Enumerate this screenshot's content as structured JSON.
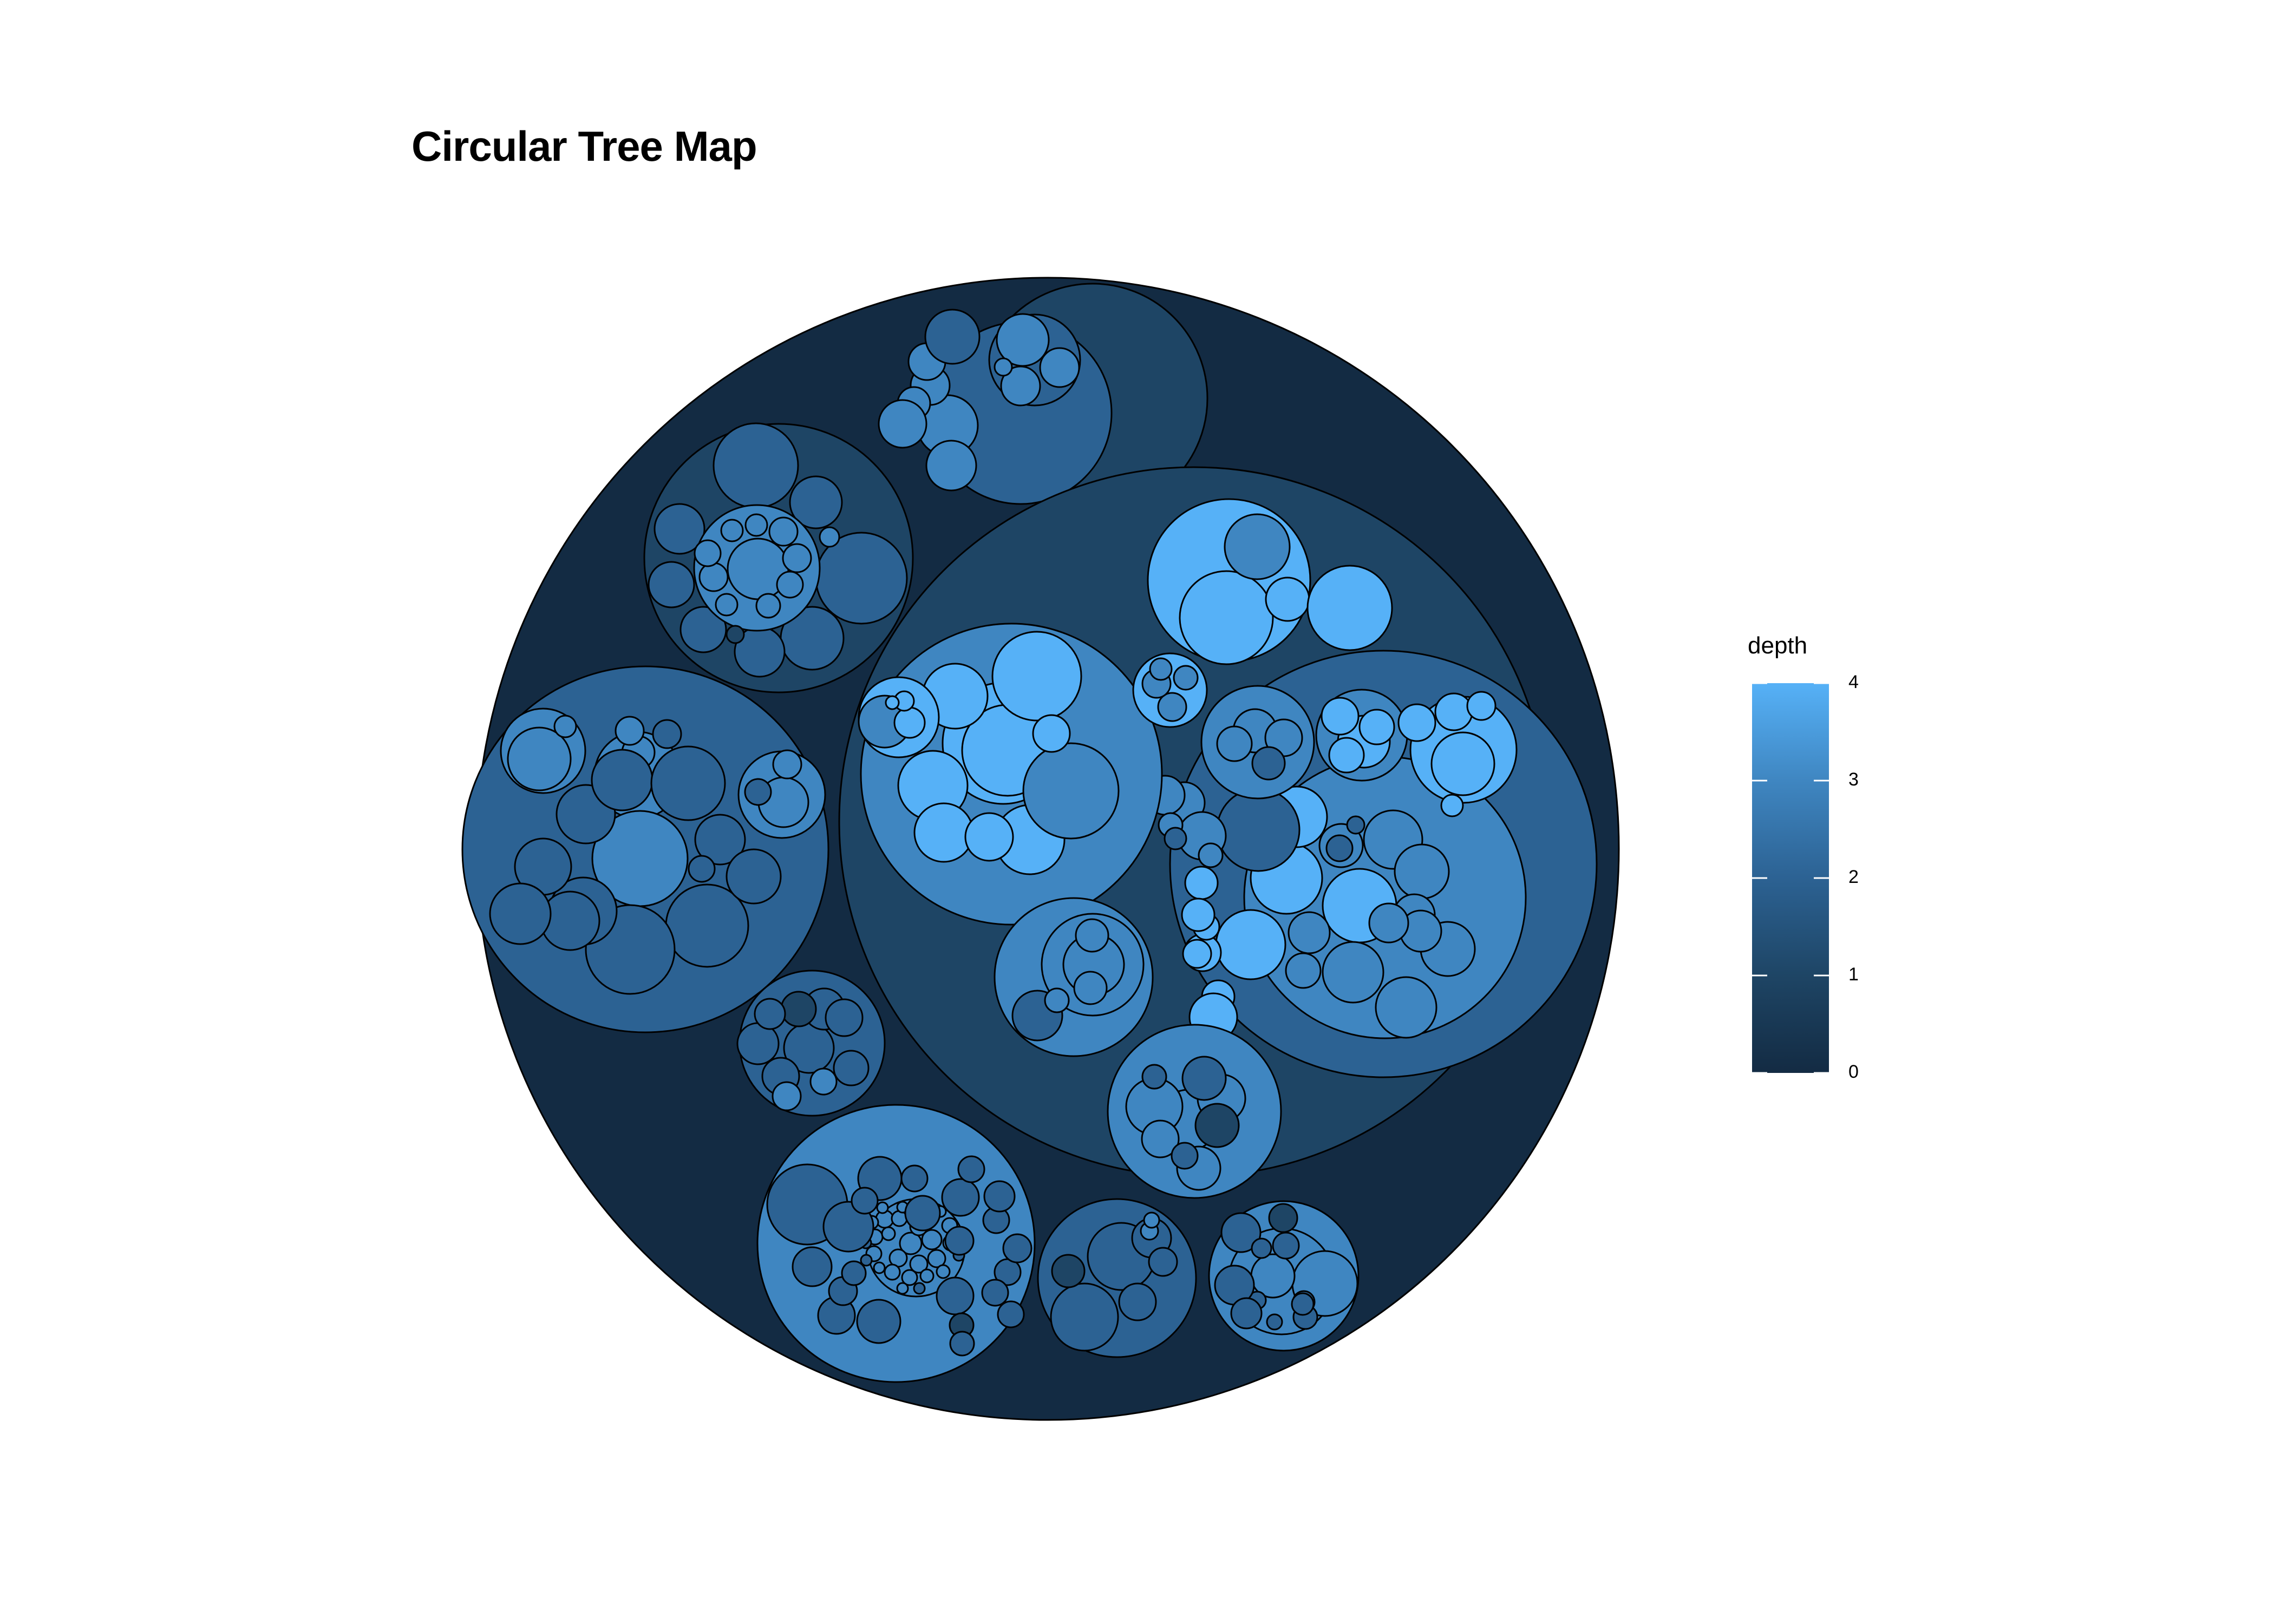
{
  "chart_data": {
    "type": "circle-packing",
    "title": "Circular Tree Map",
    "legend": {
      "title": "depth",
      "placement": "right",
      "ticks": [
        "0",
        "1",
        "2",
        "3",
        "4"
      ],
      "range": [
        0,
        4
      ]
    },
    "colors": {
      "depth_0": "#132B43",
      "depth_1": "#1E4565",
      "depth_2": "#2C6293",
      "depth_3": "#3F86C1",
      "depth_4": "#56B1F7"
    },
    "hierarchy": {
      "depth": 0,
      "children": [
        {
          "depth": 1,
          "children": [
            {
              "depth": 2,
              "children": [
                {
                  "depth": 3
                },
                {
                  "depth": 3
                },
                {
                  "depth": 3
                },
                {
                  "depth": 3
                },
                {
                  "depth": 3
                },
                {
                  "depth": 3
                }
              ]
            },
            {
              "depth": 2,
              "children": [
                {
                  "depth": 3
                },
                {
                  "depth": 3
                },
                {
                  "depth": 3
                },
                {
                  "depth": 3
                }
              ]
            },
            {
              "depth": 2
            }
          ]
        },
        {
          "depth": 1,
          "children": [
            {
              "depth": 2
            },
            {
              "depth": 2
            },
            {
              "depth": 2
            },
            {
              "depth": 2
            },
            {
              "depth": 2
            },
            {
              "depth": 2
            },
            {
              "depth": 2
            },
            {
              "depth": 2,
              "children": [
                {
                  "depth": 3
                },
                {
                  "depth": 3
                },
                {
                  "depth": 3
                },
                {
                  "depth": 3
                },
                {
                  "depth": 3
                },
                {
                  "depth": 3
                },
                {
                  "depth": 3
                },
                {
                  "depth": 3
                },
                {
                  "depth": 3
                },
                {
                  "depth": 3
                },
                {
                  "depth": 3
                },
                {
                  "depth": 3
                }
              ]
            }
          ]
        },
        {
          "depth": 1,
          "children": [
            {
              "depth": 2,
              "children": [
                {
                  "depth": 3
                },
                {
                  "depth": 3
                },
                {
                  "depth": 3
                }
              ]
            },
            {
              "depth": 2,
              "children": [
                {
                  "depth": 3
                },
                {
                  "depth": 3
                },
                {
                  "depth": 3
                }
              ]
            },
            {
              "depth": 2,
              "children": [
                {
                  "depth": 3
                },
                {
                  "depth": 3
                },
                {
                  "depth": 3
                },
                {
                  "depth": 3
                }
              ]
            },
            {
              "depth": 2
            },
            {
              "depth": 2
            },
            {
              "depth": 2
            },
            {
              "depth": 2
            },
            {
              "depth": 2
            },
            {
              "depth": 2
            },
            {
              "depth": 2
            },
            {
              "depth": 2
            },
            {
              "depth": 2
            },
            {
              "depth": 2
            },
            {
              "depth": 2
            },
            {
              "depth": 2
            }
          ]
        },
        {
          "depth": 1,
          "children": [
            {
              "depth": 2,
              "children": [
                {
                  "depth": 3,
                  "children": [
                    {
                      "depth": 4
                    },
                    {
                      "depth": 4
                    },
                    {
                      "depth": 4
                    },
                    {
                      "depth": 4
                    }
                  ]
                },
                {
                  "depth": 3
                },
                {
                  "depth": 3
                },
                {
                  "depth": 3
                },
                {
                  "depth": 3
                },
                {
                  "depth": 3
                },
                {
                  "depth": 3
                },
                {
                  "depth": 3
                },
                {
                  "depth": 3
                }
              ]
            },
            {
              "depth": 2,
              "children": [
                {
                  "depth": 3
                },
                {
                  "depth": 3
                },
                {
                  "depth": 3
                }
              ]
            },
            {
              "depth": 2
            },
            {
              "depth": 2,
              "children": [
                {
                  "depth": 3
                },
                {
                  "depth": 3
                },
                {
                  "depth": 3
                },
                {
                  "depth": 3
                },
                {
                  "depth": 3
                }
              ]
            },
            {
              "depth": 2,
              "children": [
                {
                  "depth": 3
                },
                {
                  "depth": 3
                },
                {
                  "depth": 3
                },
                {
                  "depth": 3
                }
              ]
            },
            {
              "depth": 2,
              "children": [
                {
                  "depth": 3,
                  "children": [
                    {
                      "depth": 4
                    },
                    {
                      "depth": 4
                    },
                    {
                      "depth": 4
                    },
                    {
                      "depth": 4
                    },
                    {
                      "depth": 4
                    },
                    {
                      "depth": 4
                    },
                    {
                      "depth": 4
                    },
                    {
                      "depth": 4
                    },
                    {
                      "depth": 4
                    },
                    {
                      "depth": 4
                    },
                    {
                      "depth": 4
                    },
                    {
                      "depth": 4
                    },
                    {
                      "depth": 4
                    },
                    {
                      "depth": 4
                    },
                    {
                      "depth": 4
                    },
                    {
                      "depth": 4
                    },
                    {
                      "depth": 4
                    }
                  ]
                },
                {
                  "depth": 3,
                  "children": [
                    {
                      "depth": 4
                    },
                    {
                      "depth": 4
                    },
                    {
                      "depth": 4
                    },
                    {
                      "depth": 4
                    },
                    {
                      "depth": 4
                    },
                    {
                      "depth": 4
                    }
                  ]
                },
                {
                  "depth": 3,
                  "children": [
                    {
                      "depth": 4
                    },
                    {
                      "depth": 4
                    },
                    {
                      "depth": 4
                    },
                    {
                      "depth": 4
                    }
                  ]
                },
                {
                  "depth": 3,
                  "children": [
                    {
                      "depth": 4
                    },
                    {
                      "depth": 4
                    },
                    {
                      "depth": 4
                    },
                    {
                      "depth": 4
                    },
                    {
                      "depth": 4
                    }
                  ]
                },
                {
                  "depth": 3,
                  "children": [
                    {
                      "depth": 4
                    },
                    {
                      "depth": 4
                    },
                    {
                      "depth": 4
                    }
                  ]
                },
                {
                  "depth": 3
                },
                {
                  "depth": 3
                },
                {
                  "depth": 3
                },
                {
                  "depth": 3
                },
                {
                  "depth": 3
                },
                {
                  "depth": 3
                },
                {
                  "depth": 3
                }
              ]
            },
            {
              "depth": 2,
              "children": [
                {
                  "depth": 3
                },
                {
                  "depth": 3
                },
                {
                  "depth": 3
                },
                {
                  "depth": 3
                },
                {
                  "depth": 3
                },
                {
                  "depth": 3
                },
                {
                  "depth": 3
                },
                {
                  "depth": 3
                },
                {
                  "depth": 3
                }
              ]
            }
          ]
        },
        {
          "depth": 1,
          "children": [
            {
              "depth": 2
            },
            {
              "depth": 2
            },
            {
              "depth": 2
            },
            {
              "depth": 2
            },
            {
              "depth": 2
            },
            {
              "depth": 2
            },
            {
              "depth": 2
            },
            {
              "depth": 2
            },
            {
              "depth": 2
            },
            {
              "depth": 2
            }
          ]
        },
        {
          "depth": 1,
          "children": [
            {
              "depth": 2,
              "children": [
                {
                  "depth": 3
                },
                {
                  "depth": 3
                },
                {
                  "depth": 3
                },
                {
                  "depth": 3
                },
                {
                  "depth": 3
                },
                {
                  "depth": 3
                },
                {
                  "depth": 3
                },
                {
                  "depth": 3
                },
                {
                  "depth": 3
                },
                {
                  "depth": 3
                },
                {
                  "depth": 3
                },
                {
                  "depth": 3
                },
                {
                  "depth": 3
                },
                {
                  "depth": 3
                },
                {
                  "depth": 3
                },
                {
                  "depth": 3
                },
                {
                  "depth": 3
                },
                {
                  "depth": 3
                },
                {
                  "depth": 3
                },
                {
                  "depth": 3
                },
                {
                  "depth": 3
                },
                {
                  "depth": 3
                },
                {
                  "depth": 3
                },
                {
                  "depth": 3
                },
                {
                  "depth": 3
                },
                {
                  "depth": 3
                },
                {
                  "depth": 3
                },
                {
                  "depth": 3
                },
                {
                  "depth": 3
                },
                {
                  "depth": 3
                }
              ]
            },
            {
              "depth": 2
            },
            {
              "depth": 2
            },
            {
              "depth": 2
            },
            {
              "depth": 2
            },
            {
              "depth": 2
            },
            {
              "depth": 2
            },
            {
              "depth": 2
            },
            {
              "depth": 2
            },
            {
              "depth": 2
            },
            {
              "depth": 2
            },
            {
              "depth": 2
            },
            {
              "depth": 2
            },
            {
              "depth": 2
            },
            {
              "depth": 2
            },
            {
              "depth": 2
            },
            {
              "depth": 2
            },
            {
              "depth": 2
            },
            {
              "depth": 2
            },
            {
              "depth": 2
            },
            {
              "depth": 2
            },
            {
              "depth": 2
            },
            {
              "depth": 2
            },
            {
              "depth": 2
            }
          ]
        },
        {
          "depth": 1,
          "children": [
            {
              "depth": 2
            },
            {
              "depth": 2
            },
            {
              "depth": 2
            },
            {
              "depth": 2
            },
            {
              "depth": 2
            },
            {
              "depth": 2
            },
            {
              "depth": 2
            },
            {
              "depth": 2
            }
          ]
        },
        {
          "depth": 1,
          "children": [
            {
              "depth": 2,
              "children": [
                {
                  "depth": 3
                },
                {
                  "depth": 3
                },
                {
                  "depth": 3
                },
                {
                  "depth": 3
                },
                {
                  "depth": 3
                },
                {
                  "depth": 3
                }
              ]
            },
            {
              "depth": 2
            },
            {
              "depth": 2
            },
            {
              "depth": 2
            },
            {
              "depth": 2
            },
            {
              "depth": 2
            },
            {
              "depth": 2
            },
            {
              "depth": 2
            }
          ]
        },
        {
          "depth": 1,
          "children": [
            {
              "depth": 2
            },
            {
              "depth": 2
            },
            {
              "depth": 2
            }
          ]
        }
      ]
    }
  }
}
